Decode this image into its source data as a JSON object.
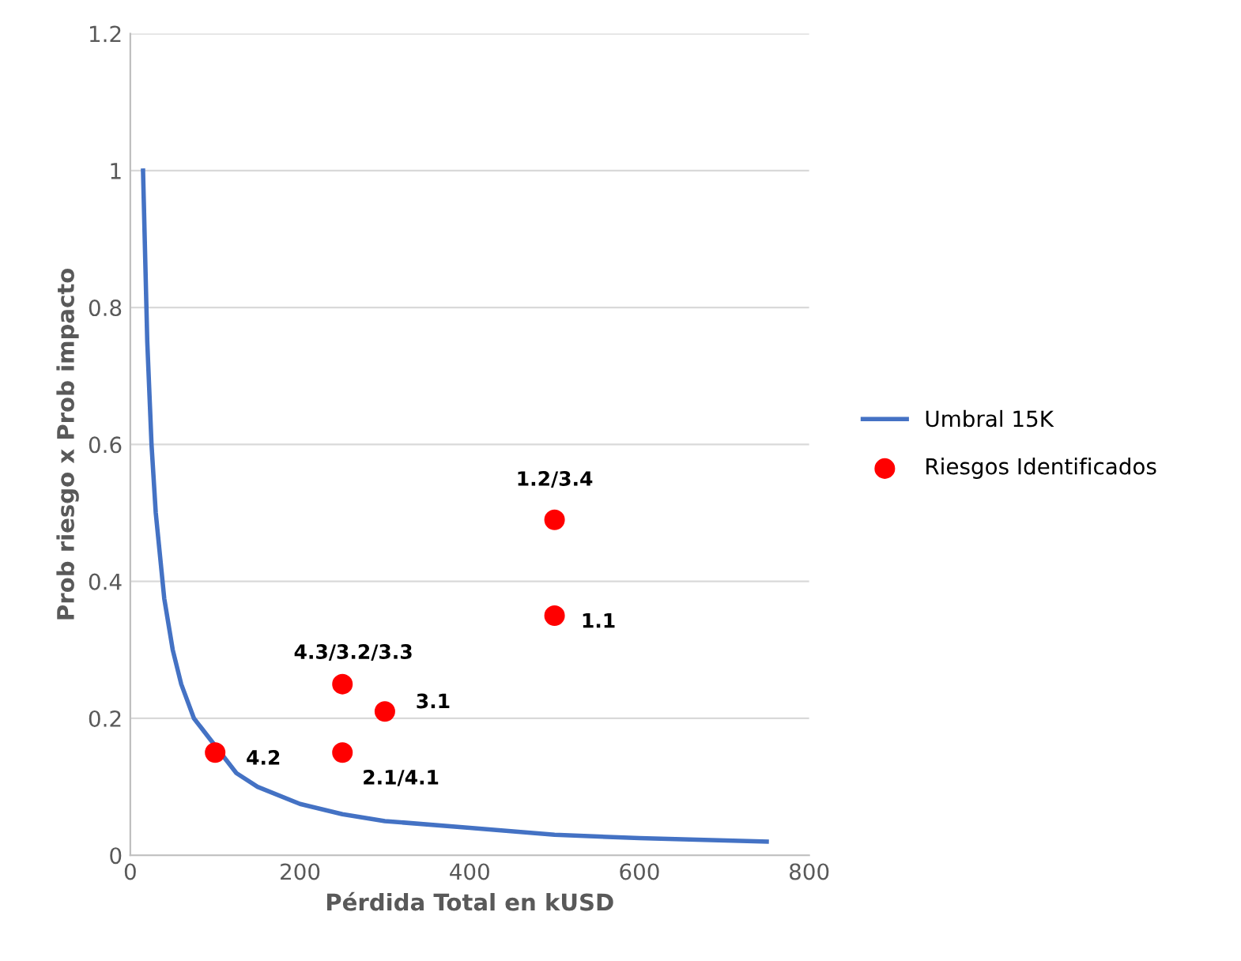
{
  "chart_data": {
    "type": "scatter",
    "xlabel": "Pérdida Total en kUSD",
    "ylabel": "Prob riesgo x Prob impacto",
    "xlim": [
      0,
      800
    ],
    "xticks": [
      0,
      200,
      400,
      600,
      800
    ],
    "ylim": [
      0,
      1.2
    ],
    "yticks": [
      0,
      0.2,
      0.4,
      0.6,
      0.8,
      1,
      1.2
    ],
    "grid": "y",
    "legend": "right",
    "series": [
      {
        "name": "Umbral 15K",
        "type": "line",
        "color": "#4472c4",
        "marker": "none",
        "x": [
          15,
          20,
          25,
          30,
          40,
          50,
          60,
          75,
          125,
          150,
          200,
          250,
          300,
          400,
          500,
          600,
          750
        ],
        "values": [
          1,
          0.75,
          0.6,
          0.5,
          0.375,
          0.3,
          0.25,
          0.2,
          0.12,
          0.1,
          0.075,
          0.06,
          0.05,
          0.04,
          0.03,
          0.025,
          0.02
        ]
      },
      {
        "name": "Riesgos Identificados",
        "color": "#ff0000",
        "marker": "circle",
        "x": [
          100,
          250,
          250,
          300,
          500,
          500
        ],
        "values": [
          0.15,
          0.25,
          0.15,
          0.21,
          0.35,
          0.49
        ]
      }
    ],
    "annotations": [
      {
        "text": "4.2",
        "x": 100,
        "y": 0.15
      },
      {
        "text": "4.3/3.2/3.3",
        "x": 250,
        "y": 0.25
      },
      {
        "text": "2.1/4.1",
        "x": 250,
        "y": 0.15
      },
      {
        "text": "3.1",
        "x": 300,
        "y": 0.21
      },
      {
        "text": "1.1",
        "x": 500,
        "y": 0.35
      },
      {
        "text": "1.2/3.4",
        "x": 500,
        "y": 0.49
      }
    ]
  }
}
